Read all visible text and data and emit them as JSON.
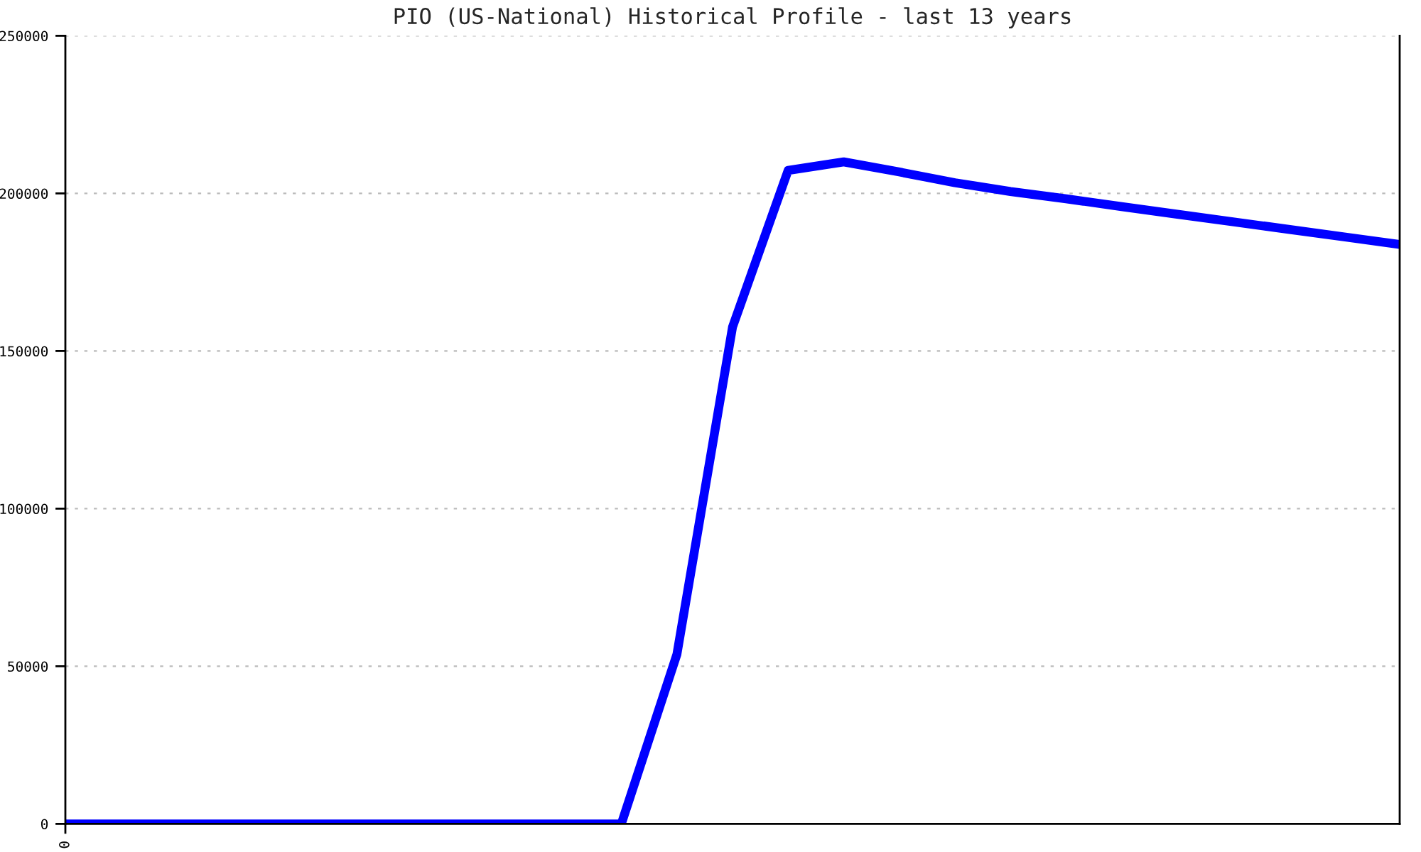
{
  "chart_data": {
    "type": "line",
    "title": "PIO (US-National) Historical Profile - last 13 years",
    "categories": [
      "0",
      null,
      null,
      null,
      null,
      null,
      null,
      null,
      null,
      null,
      null,
      null,
      null,
      null,
      null,
      null,
      null,
      null,
      null,
      null,
      null,
      null,
      null,
      null,
      null
    ],
    "series": [
      {
        "color": "#0000ff",
        "values": [
          0,
          0,
          0,
          0,
          0,
          0,
          0,
          0,
          0,
          0,
          0,
          53800,
          157600,
          207300,
          210000,
          206800,
          203400,
          200600,
          198300,
          195800,
          193400,
          191000,
          188600,
          186200,
          183800
        ]
      }
    ],
    "ylim": [
      0,
      250000
    ],
    "yticks": [
      0,
      50000,
      100000,
      150000,
      200000,
      250000
    ],
    "grid": "y",
    "marker": "none",
    "line_style": "solid"
  }
}
